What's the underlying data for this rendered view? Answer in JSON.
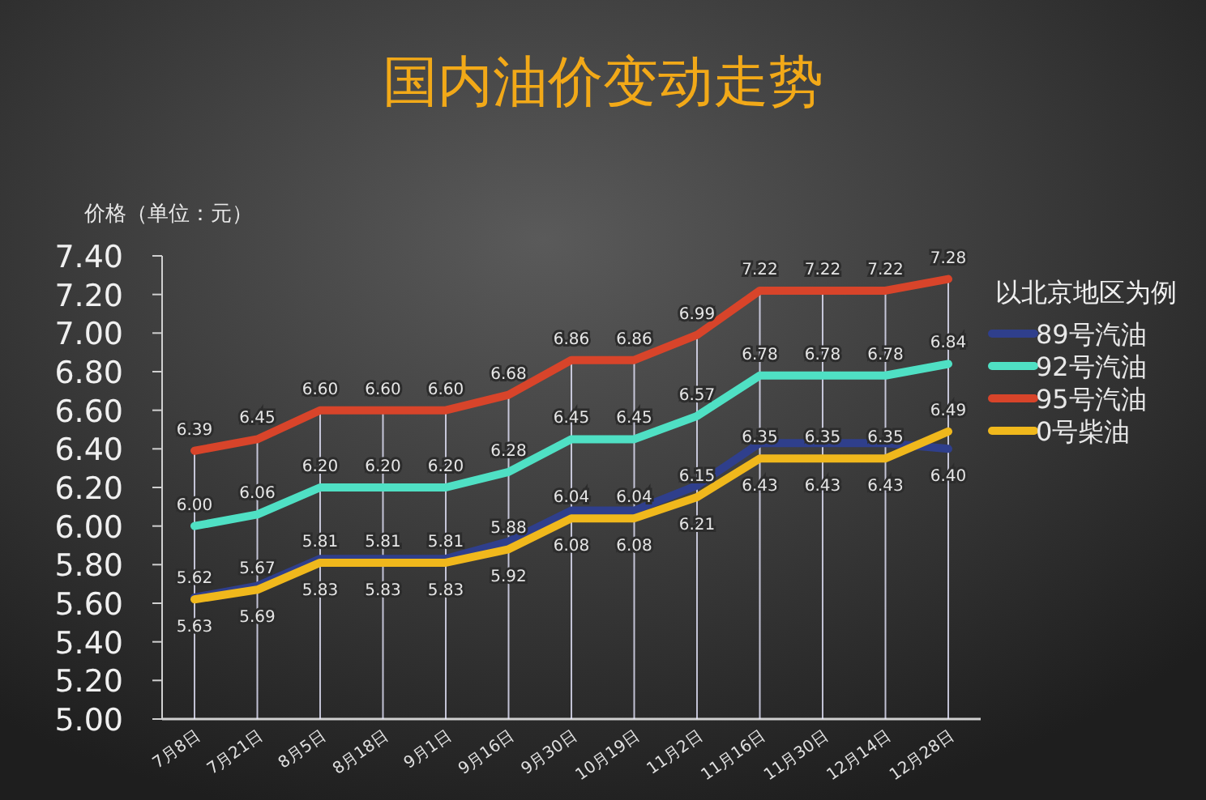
{
  "chart_data": {
    "type": "line",
    "title": "国内油价变动走势",
    "ylabel": "价格（单位：元）",
    "legend_title": "以北京地区为例",
    "categories": [
      "7月8日",
      "7月21日",
      "8月5日",
      "8月18日",
      "9月1日",
      "9月16日",
      "9月30日",
      "10月19日",
      "11月2日",
      "11月16日",
      "11月30日",
      "12月14日",
      "12月28日"
    ],
    "series": [
      {
        "name": "89号汽油",
        "color": "#2f3f8c",
        "values": [
          5.63,
          5.69,
          5.83,
          5.83,
          5.83,
          5.92,
          6.08,
          6.08,
          6.21,
          6.43,
          6.43,
          6.43,
          6.4
        ],
        "value_labels": [
          "5.63",
          "5.69",
          "5.83",
          "5.83",
          "5.83",
          "5.92",
          "6.08",
          "6.08",
          "6.21",
          "6.43",
          "6.43",
          "6.43",
          "6.40"
        ]
      },
      {
        "name": "92号汽油",
        "color": "#4fe0c4",
        "values": [
          6.0,
          6.06,
          6.2,
          6.2,
          6.2,
          6.28,
          6.45,
          6.45,
          6.57,
          6.78,
          6.78,
          6.78,
          6.84
        ],
        "value_labels": [
          "6.00",
          "6.06",
          "6.20",
          "6.20",
          "6.20",
          "6.28",
          "6.45",
          "6.45",
          "6.57",
          "6.78",
          "6.78",
          "6.78",
          "6.84"
        ]
      },
      {
        "name": "95号汽油",
        "color": "#d8442a",
        "values": [
          6.39,
          6.45,
          6.6,
          6.6,
          6.6,
          6.68,
          6.86,
          6.86,
          6.99,
          7.22,
          7.22,
          7.22,
          7.28
        ],
        "value_labels": [
          "6.39",
          "6.45",
          "6.60",
          "6.60",
          "6.60",
          "6.68",
          "6.86",
          "6.86",
          "6.99",
          "7.22",
          "7.22",
          "7.22",
          "7.28"
        ]
      },
      {
        "name": "0号柴油",
        "color": "#f0b81c",
        "values": [
          5.62,
          5.67,
          5.81,
          5.81,
          5.81,
          5.88,
          6.04,
          6.04,
          6.15,
          6.35,
          6.35,
          6.35,
          6.49
        ],
        "value_labels": [
          "5.62",
          "5.67",
          "5.81",
          "5.81",
          "5.81",
          "5.88",
          "6.04",
          "6.04",
          "6.15",
          "6.35",
          "6.35",
          "6.35",
          "6.49"
        ]
      }
    ],
    "ylim": [
      5.0,
      7.4
    ],
    "yticks": [
      {
        "value": 5.0,
        "label": "5.00"
      },
      {
        "value": 5.2,
        "label": "5.20"
      },
      {
        "value": 5.4,
        "label": "5.40"
      },
      {
        "value": 5.6,
        "label": "5.60"
      },
      {
        "value": 5.8,
        "label": "5.80"
      },
      {
        "value": 6.0,
        "label": "6.00"
      },
      {
        "value": 6.2,
        "label": "6.20"
      },
      {
        "value": 6.4,
        "label": "6.40"
      },
      {
        "value": 6.6,
        "label": "6.60"
      },
      {
        "value": 6.8,
        "label": "6.80"
      },
      {
        "value": 7.0,
        "label": "7.00"
      },
      {
        "value": 7.2,
        "label": "7.20"
      },
      {
        "value": 7.4,
        "label": "7.40"
      }
    ],
    "grid": "x",
    "legend": "right",
    "marker": "none",
    "line_style": "solid"
  }
}
